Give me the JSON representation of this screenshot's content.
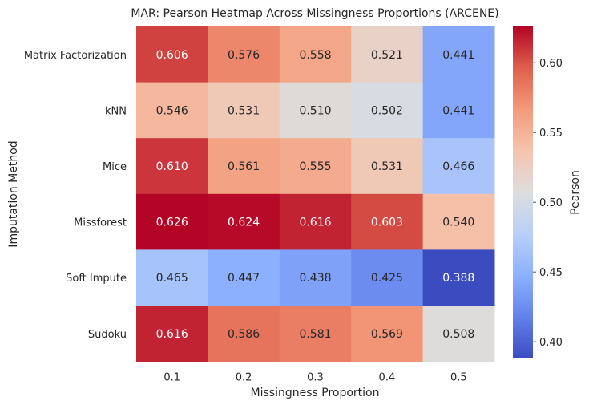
{
  "chart_data": {
    "type": "heatmap",
    "title": "MAR: Pearson Heatmap Across Missingness Proportions (ARCENE)",
    "xlabel": "Missingness Proportion",
    "ylabel": "Imputation Method",
    "x_categories": [
      "0.1",
      "0.2",
      "0.3",
      "0.4",
      "0.5"
    ],
    "y_categories": [
      "Matrix Factorization",
      "kNN",
      "Mice",
      "Missforest",
      "Soft Impute",
      "Sudoku"
    ],
    "values": [
      [
        0.606,
        0.576,
        0.558,
        0.521,
        0.441
      ],
      [
        0.546,
        0.531,
        0.51,
        0.502,
        0.441
      ],
      [
        0.61,
        0.561,
        0.555,
        0.531,
        0.466
      ],
      [
        0.626,
        0.624,
        0.616,
        0.603,
        0.54
      ],
      [
        0.465,
        0.447,
        0.438,
        0.425,
        0.388
      ],
      [
        0.616,
        0.586,
        0.581,
        0.569,
        0.508
      ]
    ],
    "annotation_format": "0.000",
    "colormap": "coolwarm",
    "vmin": 0.388,
    "vmax": 0.626,
    "colorbar": {
      "label": "Pearson",
      "ticks": [
        0.4,
        0.45,
        0.5,
        0.55,
        0.6
      ],
      "tick_labels": [
        "0.40",
        "0.45",
        "0.50",
        "0.55",
        "0.60"
      ]
    },
    "grid": false
  }
}
